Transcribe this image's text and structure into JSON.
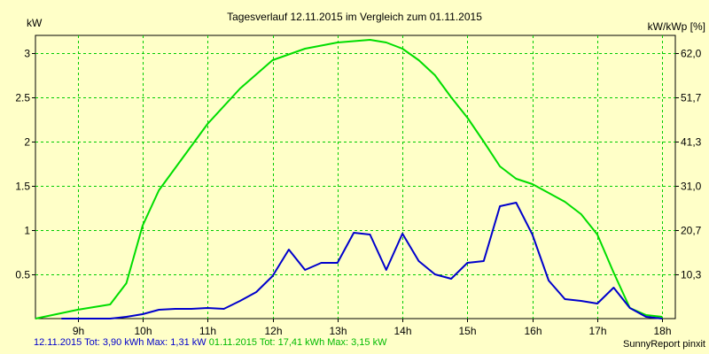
{
  "chart_data": {
    "type": "line",
    "title": "Tagesverlauf 12.11.2015 im Vergleich zum 01.11.2015",
    "ylabel": "kW",
    "y2label": "kW/kWp [%]",
    "xlim": [
      8.35,
      18.2
    ],
    "ylim": [
      0,
      3.2
    ],
    "y2lim": [
      0,
      66.1
    ],
    "x_ticks": [
      9,
      10,
      11,
      12,
      13,
      14,
      15,
      16,
      17,
      18
    ],
    "x_tick_labels": [
      "9h",
      "10h",
      "11h",
      "12h",
      "13h",
      "14h",
      "15h",
      "16h",
      "17h",
      "18h"
    ],
    "y_ticks": [
      0.5,
      1,
      1.5,
      2,
      2.5,
      3
    ],
    "y_tick_labels": [
      "0.5",
      "1",
      "1.5",
      "2",
      "2.5",
      "3"
    ],
    "y2_ticks": [
      10.3,
      20.7,
      31.0,
      41.3,
      51.7,
      62.0
    ],
    "y2_tick_labels": [
      "10,3",
      "20,7",
      "31,0",
      "41,3",
      "51,7",
      "62,0"
    ],
    "grid": true,
    "series": [
      {
        "name": "12.11.2015",
        "color": "#0000CC",
        "x": [
          8.75,
          9.0,
          9.25,
          9.5,
          9.75,
          10.0,
          10.25,
          10.5,
          10.75,
          11.0,
          11.25,
          11.5,
          11.75,
          12.0,
          12.25,
          12.5,
          12.75,
          13.0,
          13.25,
          13.5,
          13.75,
          14.0,
          14.25,
          14.5,
          14.75,
          15.0,
          15.25,
          15.5,
          15.75,
          16.0,
          16.25,
          16.5,
          16.75,
          17.0,
          17.25,
          17.5,
          17.75,
          18.0
        ],
        "values": [
          0.0,
          0.0,
          0.0,
          0.0,
          0.02,
          0.05,
          0.1,
          0.11,
          0.11,
          0.12,
          0.11,
          0.2,
          0.3,
          0.48,
          0.78,
          0.55,
          0.63,
          0.63,
          0.97,
          0.95,
          0.55,
          0.96,
          0.65,
          0.5,
          0.45,
          0.63,
          0.65,
          1.27,
          1.31,
          0.95,
          0.43,
          0.22,
          0.2,
          0.17,
          0.35,
          0.12,
          0.02,
          0.0
        ]
      },
      {
        "name": "01.11.2015",
        "color": "#00DD00",
        "x": [
          8.35,
          9.0,
          9.5,
          9.75,
          10.0,
          10.25,
          10.5,
          11.0,
          11.5,
          12.0,
          12.5,
          13.0,
          13.5,
          13.75,
          14.0,
          14.25,
          14.5,
          14.75,
          15.0,
          15.25,
          15.5,
          15.75,
          16.0,
          16.25,
          16.5,
          16.75,
          17.0,
          17.25,
          17.5,
          17.75,
          18.0
        ],
        "values": [
          0.0,
          0.1,
          0.16,
          0.4,
          1.05,
          1.45,
          1.7,
          2.2,
          2.6,
          2.92,
          3.05,
          3.12,
          3.15,
          3.12,
          3.05,
          2.92,
          2.75,
          2.5,
          2.27,
          2.0,
          1.72,
          1.58,
          1.52,
          1.42,
          1.32,
          1.18,
          0.95,
          0.52,
          0.12,
          0.04,
          0.02
        ]
      }
    ]
  },
  "footer": {
    "series1_summary": "12.11.2015 Tot: 3,90 kWh Max: 1,31 kW",
    "series2_summary": "01.11.2015 Tot: 17,41 kWh Max: 3,15 kW",
    "credit": "SunnyReport pinxit"
  }
}
